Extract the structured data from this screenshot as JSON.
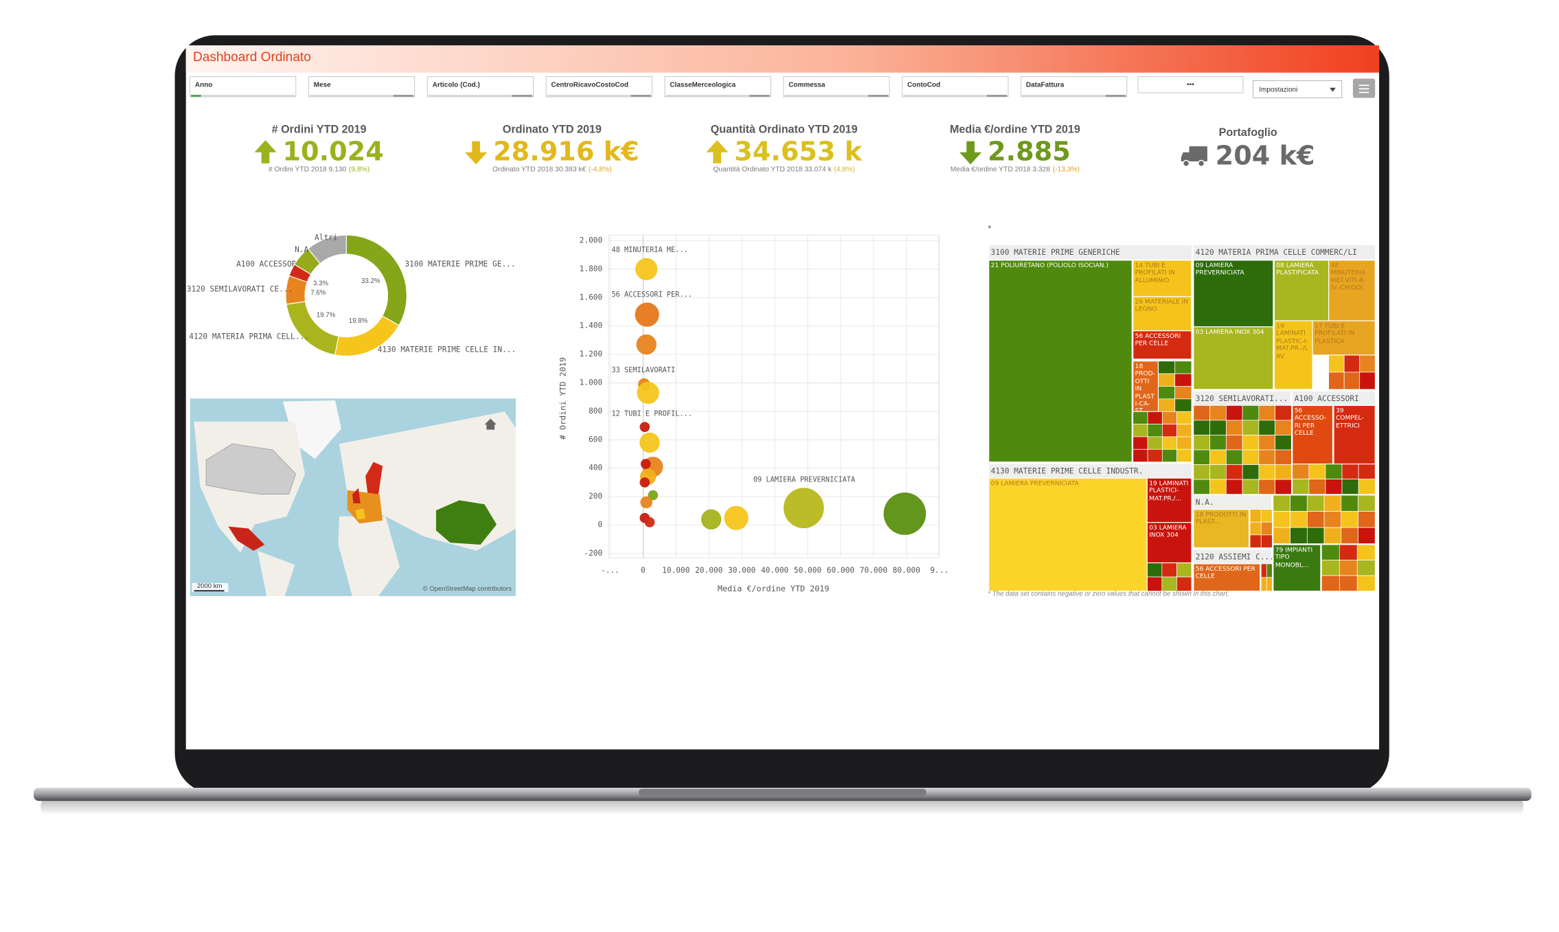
{
  "header": {
    "title": "Dashboard Ordinato"
  },
  "filters": [
    "Anno",
    "Mese",
    "Articolo (Cod.)",
    "CentroRicavoCostoCod",
    "ClasseMerceologica",
    "Commessa",
    "ContoCod",
    "DataFattura"
  ],
  "toolbar": {
    "more": "•••",
    "settings": "Impostazioni"
  },
  "kpis": [
    {
      "title": "# Ordini YTD 2019",
      "value": "10.024",
      "direction": "up",
      "color": "#9bb21c",
      "sub": "# Ordini YTD 2018 9.130",
      "change": "(9,8%)",
      "change_color": "#9bb21c"
    },
    {
      "title": "Ordinato YTD 2019",
      "value": "28.916 k€",
      "direction": "down",
      "color": "#e3b81c",
      "sub": "Ordinato YTD 2018 30.383 k€",
      "change": "(-4,8%)",
      "change_color": "#e3a21c"
    },
    {
      "title": "Quantità Ordinato YTD 2019",
      "value": "34.653 k",
      "direction": "up",
      "color": "#dcc01e",
      "sub": "Quantità Ordinato YTD 2018 33.074 k",
      "change": "(4,8%)",
      "change_color": "#dcb21e"
    },
    {
      "title": "Media €/ordine YTD 2019",
      "value": "2.885",
      "direction": "down",
      "color": "#6e9a1c",
      "sub": "Media €/ordine YTD 2018 3.328",
      "change": "(-13,3%)",
      "change_color": "#d9a01c"
    },
    {
      "title": "Portafoglio",
      "value": "204 k€",
      "icon": "truck",
      "color": "#6a6a6a"
    }
  ],
  "chart_data": [
    {
      "type": "pie",
      "categories": [
        "3100 MATERIE PRIME GE...",
        "4130 MATERIE PRIME CELLE IN...",
        "4120 MATERIA PRIMA CELL...",
        "3120 SEMILAVORATI CE...",
        "A100 ACCESSORI",
        "N.A.",
        "Altri"
      ],
      "values": [
        33.2,
        19.8,
        19.7,
        7.6,
        3.3,
        5.5,
        10.9
      ],
      "value_labels": [
        "33.2%",
        "19.8%",
        "19.7%",
        "7.6%",
        "3.3%",
        null,
        null
      ],
      "colors": [
        "#84a618",
        "#f6c51c",
        "#aab51e",
        "#e8841e",
        "#d22a16",
        "#96aa1c",
        "#a9a9a9"
      ]
    },
    {
      "type": "scatter",
      "x_label": "Media €/ordine YTD 2019",
      "y_label": "# Ordini YTD 2019",
      "x": [
        1000,
        1200,
        1000,
        300,
        1500,
        500,
        2000,
        3000,
        800,
        1500,
        500,
        3000,
        1000,
        500,
        2000,
        20700,
        28300,
        48800,
        79500
      ],
      "values": [
        1800,
        1480,
        1270,
        990,
        930,
        690,
        580,
        410,
        430,
        340,
        300,
        210,
        160,
        50,
        20,
        40,
        50,
        120,
        80
      ],
      "sizes": [
        121,
        144,
        100,
        36,
        121,
        25,
        100,
        100,
        25,
        64,
        25,
        25,
        36,
        25,
        25,
        100,
        144,
        400,
        441
      ],
      "colors": [
        "#f6c51c",
        "#e6781c",
        "#e8841e",
        "#e8841e",
        "#f6c51c",
        "#c81c10",
        "#f6c51c",
        "#e8841e",
        "#c81c10",
        "#f0b01c",
        "#c81c10",
        "#7aa61a",
        "#e8841e",
        "#c81c10",
        "#d22a16",
        "#a6b21c",
        "#f6c51c",
        "#b8b81c",
        "#5a9010"
      ],
      "point_labels": [
        "48 MINUTERIA ME...",
        "56 ACCESSORI PER...",
        null,
        "33 SEMILAVORATI",
        null,
        "12 TUBI E PROFIL...",
        null,
        null,
        null,
        null,
        null,
        null,
        null,
        null,
        null,
        null,
        null,
        "09 LAMIERA PREVERNICIATA",
        null
      ],
      "xlim": [
        -10500,
        89700
      ],
      "ylim": [
        -230,
        2040
      ],
      "xticks": [
        {
          "value": -10000,
          "label": "-..."
        },
        0,
        {
          "value": 10000,
          "label": "10.000"
        },
        {
          "value": 20000,
          "label": "20.000"
        },
        {
          "value": 30000,
          "label": "30.000"
        },
        {
          "value": 40000,
          "label": "40.000"
        },
        {
          "value": 50000,
          "label": "50.000"
        },
        {
          "value": 60000,
          "label": "60.000"
        },
        {
          "value": 70000,
          "label": "70.000"
        },
        {
          "value": 80000,
          "label": "80.000"
        },
        {
          "value": 90000,
          "label": "9..."
        }
      ],
      "yticks": [
        -200,
        0,
        200,
        400,
        600,
        800,
        {
          "value": 1000,
          "label": "1.000"
        },
        {
          "value": 1200,
          "label": "1.200"
        },
        {
          "value": 1400,
          "label": "1.400"
        },
        {
          "value": 1600,
          "label": "1.600"
        },
        {
          "value": 1800,
          "label": "1.800"
        },
        {
          "value": 2000,
          "label": "2.000"
        }
      ],
      "grid": true
    }
  ],
  "map": {
    "scale": "2000 km",
    "attribution": "© OpenStreetMap contributors"
  },
  "treemap": {
    "marker": "*",
    "groups": [
      "3100 MATERIE PRIME GENERICHE",
      "4120 MATERIA PRIMA CELLE COMMERC/LI",
      "3120 SEMILAVORATI...",
      "A100 ACCESSORI",
      "4130 MATERIE PRIME CELLE INDUSTR.",
      "N.A.",
      "2120 ASSIEMI C..."
    ],
    "tiles": [
      {
        "label": "21 POLIURETANO (POLIOLO ISOCIAN.)",
        "color": "#4f8a0e"
      },
      {
        "label": "14 TUBI E PROFILATI IN ALLUMINIO",
        "color": "#f4c41c"
      },
      {
        "label": "26 MATERIALE IN LEGNO",
        "color": "#f4c41c"
      },
      {
        "label": "56 ACCESSORI PER CELLE",
        "color": "#d42a10"
      },
      {
        "label": "18 PROD-OTTI IN PLASTI-CA-ST...",
        "color": "#e0661a"
      },
      {
        "label": "09 LAMIERA PREVERNICIATA",
        "color": "#2e6c0a"
      },
      {
        "label": "08 LAMIERA PLASTIFICATA",
        "color": "#a8b620"
      },
      {
        "label": "48 MINUTERIA MET.VITI-R-IV.-CHIODI",
        "color": "#e8a522"
      },
      {
        "label": "03 LAMIERA INOX 304",
        "color": "#a8b620"
      },
      {
        "label": "19 LAMINATI PLASTIC-I-MAT.PR.-/LAV.",
        "color": "#f4c41c"
      },
      {
        "label": "17 TUBI E PROFILATI IN PLASTICA",
        "color": "#e8a522"
      },
      {
        "label": "56 ACCESSO-RI PER CELLE",
        "color": "#e04a10"
      },
      {
        "label": "39 COMPEL-ETTRICI",
        "color": "#d42a10"
      },
      {
        "label": "09 LAMIERA PREVERNICIATA",
        "color": "#fdd42a"
      },
      {
        "label": "19 LAMINATI PLASTICI-MAT.PR./...",
        "color": "#c8140c"
      },
      {
        "label": "03 LAMIERA INOX 304",
        "color": "#c8140c"
      },
      {
        "label": "18 PRODOTTI IN PLAST...",
        "color": "#e8b822"
      },
      {
        "label": "56 ACCESSORI PER CELLE",
        "color": "#e0661a"
      },
      {
        "label": "79 IMPIANTI TIPO MONOBL...",
        "color": "#3a7a10"
      }
    ],
    "footnote": "* The data set contains negative or zero values that cannot be shown in this chart."
  }
}
